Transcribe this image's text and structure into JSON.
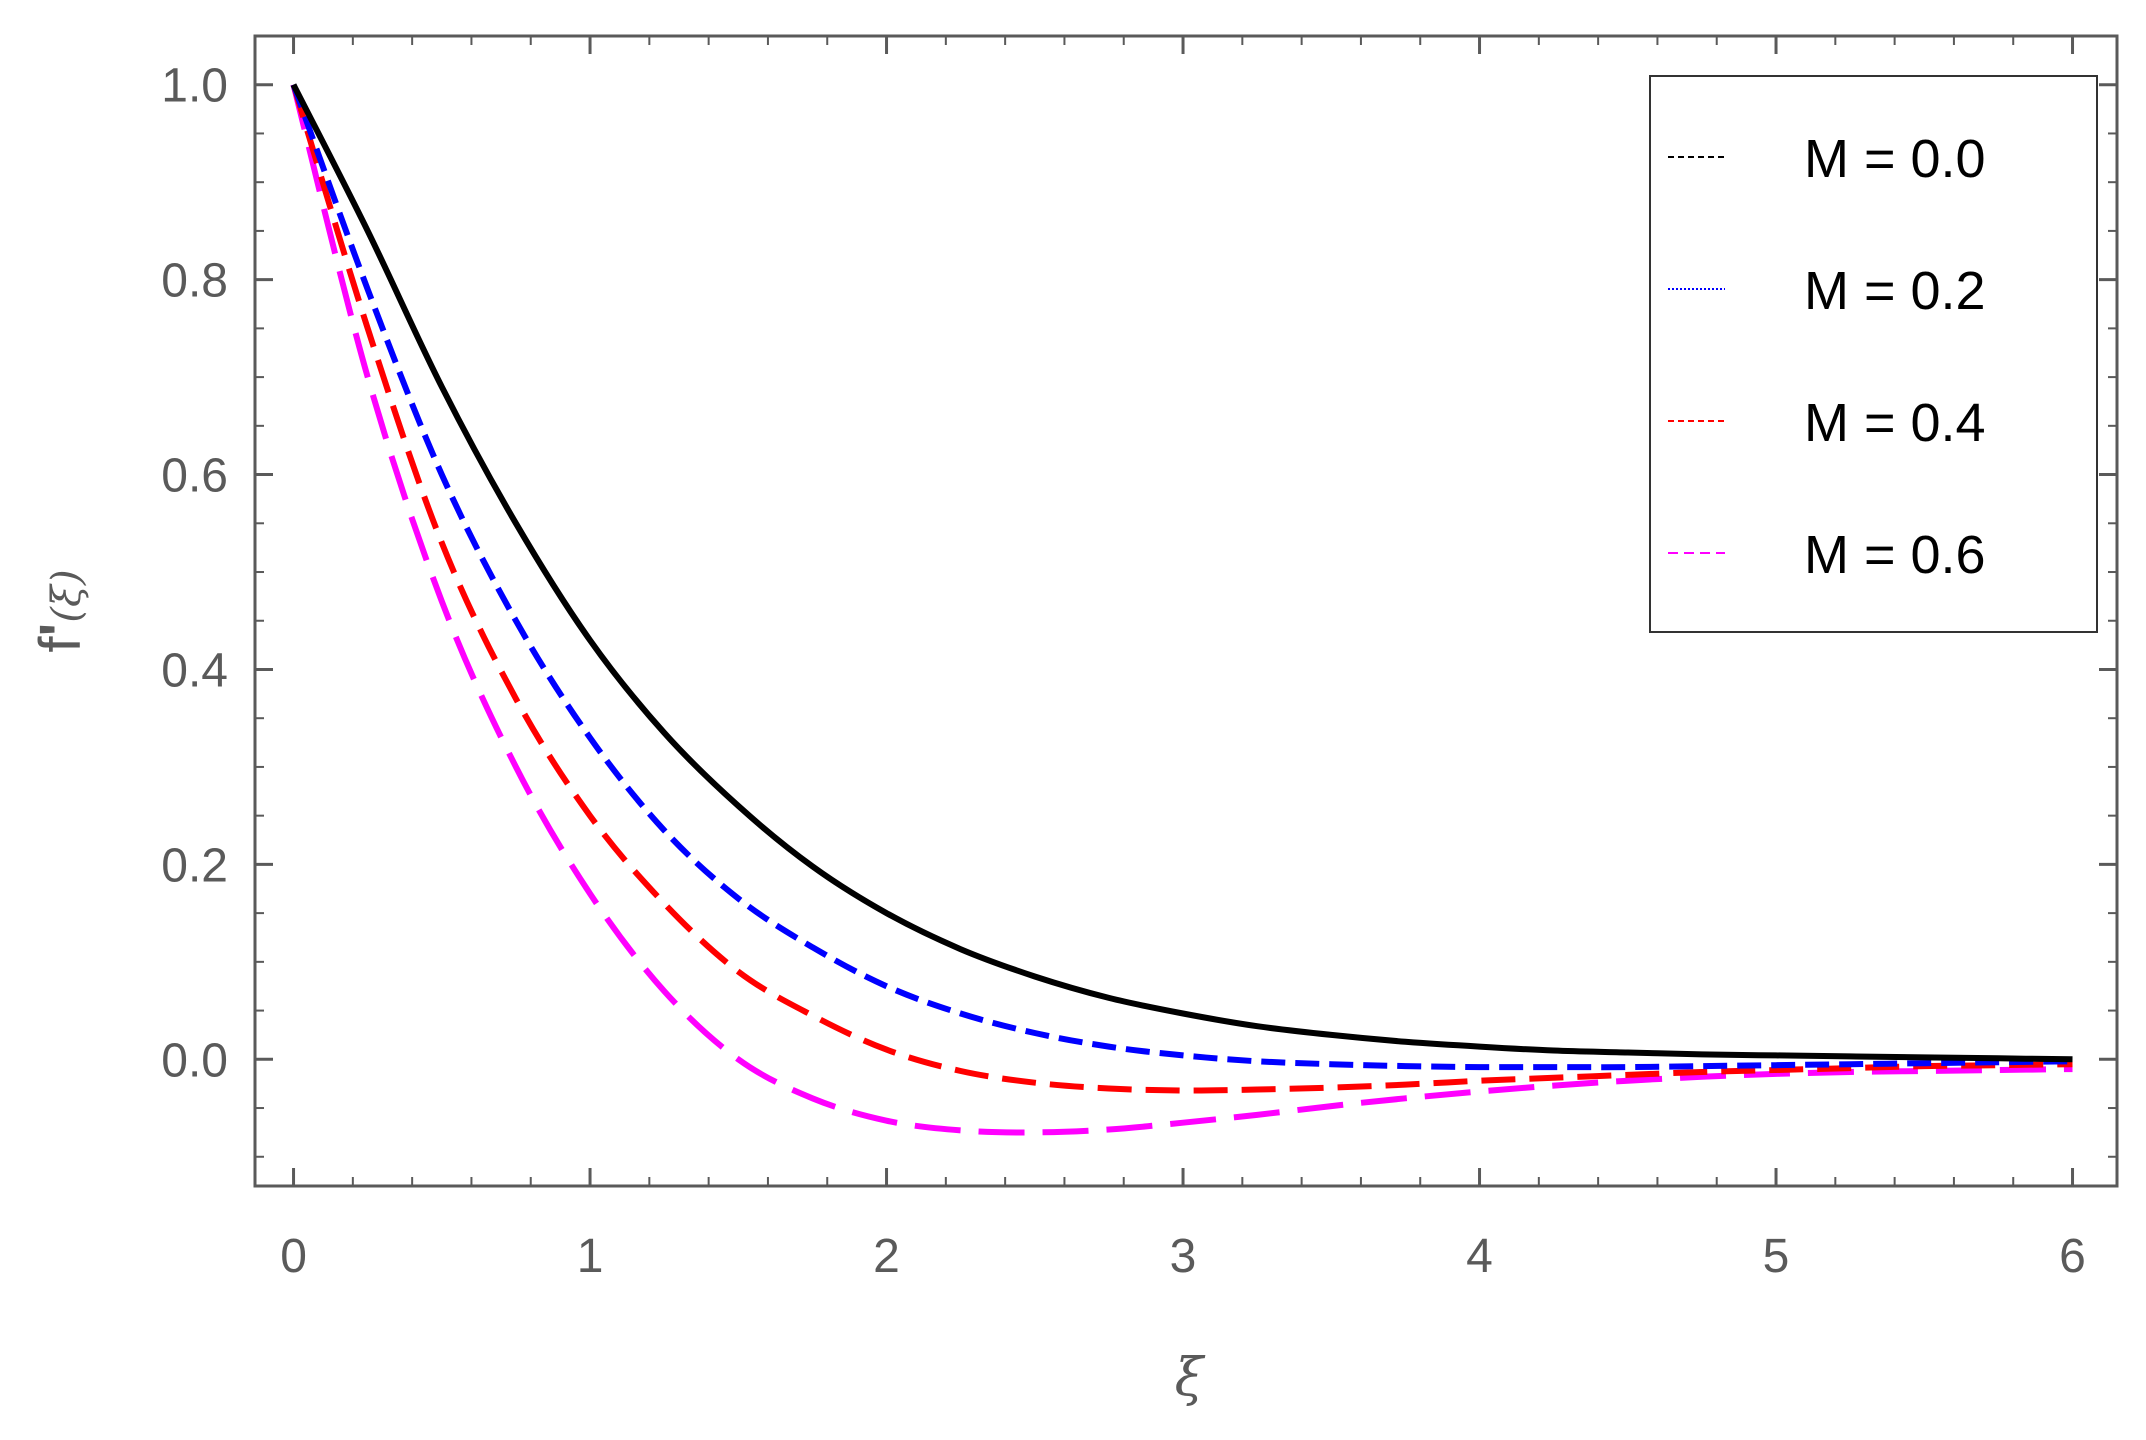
{
  "chart_data": {
    "type": "line",
    "xlabel": "ξ",
    "ylabel": "f'(ξ)",
    "ylabel_parts": {
      "func": "f",
      "prime": "'",
      "arg": "(ξ)"
    },
    "xlim": [
      -0.13,
      6.15
    ],
    "ylim": [
      -0.13,
      1.05
    ],
    "xticks": [
      0,
      1,
      2,
      3,
      4,
      5,
      6
    ],
    "xtick_labels": [
      "0",
      "1",
      "2",
      "3",
      "4",
      "5",
      "6"
    ],
    "yticks": [
      0.0,
      0.2,
      0.4,
      0.6,
      0.8,
      1.0
    ],
    "ytick_labels": [
      "0.0",
      "0.2",
      "0.4",
      "0.6",
      "0.8",
      "1.0"
    ],
    "grid": false,
    "legend_position": "top-right",
    "x": [
      0,
      0.25,
      0.5,
      0.75,
      1,
      1.25,
      1.5,
      1.75,
      2,
      2.25,
      2.5,
      2.75,
      3,
      3.25,
      3.5,
      3.75,
      4,
      4.25,
      4.5,
      4.75,
      5,
      5.25,
      5.5,
      5.75,
      6
    ],
    "series": [
      {
        "name": "M = 0.0",
        "color": "#000000",
        "style": "solid",
        "values": [
          1.0,
          0.85,
          0.69,
          0.55,
          0.43,
          0.335,
          0.26,
          0.198,
          0.15,
          0.113,
          0.085,
          0.063,
          0.047,
          0.034,
          0.025,
          0.018,
          0.013,
          0.009,
          0.007,
          0.005,
          0.004,
          0.003,
          0.002,
          0.001,
          0.0
        ]
      },
      {
        "name": "M = 0.2",
        "color": "#0000ff",
        "style": "dashed",
        "values": [
          1.0,
          0.79,
          0.6,
          0.45,
          0.33,
          0.235,
          0.165,
          0.115,
          0.075,
          0.047,
          0.027,
          0.013,
          0.004,
          -0.002,
          -0.005,
          -0.007,
          -0.008,
          -0.008,
          -0.008,
          -0.007,
          -0.006,
          -0.005,
          -0.004,
          -0.003,
          -0.002
        ]
      },
      {
        "name": "M = 0.4",
        "color": "#ff0000",
        "style": "dashed",
        "values": [
          1.0,
          0.75,
          0.53,
          0.37,
          0.25,
          0.16,
          0.09,
          0.045,
          0.01,
          -0.012,
          -0.024,
          -0.03,
          -0.032,
          -0.031,
          -0.029,
          -0.026,
          -0.022,
          -0.019,
          -0.016,
          -0.013,
          -0.011,
          -0.009,
          -0.007,
          -0.006,
          -0.005
        ]
      },
      {
        "name": "M = 0.6",
        "color": "#ff00ff",
        "style": "dashed",
        "values": [
          1.0,
          0.7,
          0.47,
          0.3,
          0.17,
          0.07,
          0.0,
          -0.04,
          -0.063,
          -0.073,
          -0.075,
          -0.072,
          -0.065,
          -0.057,
          -0.048,
          -0.04,
          -0.033,
          -0.027,
          -0.022,
          -0.018,
          -0.015,
          -0.013,
          -0.012,
          -0.011,
          -0.01
        ]
      }
    ]
  }
}
